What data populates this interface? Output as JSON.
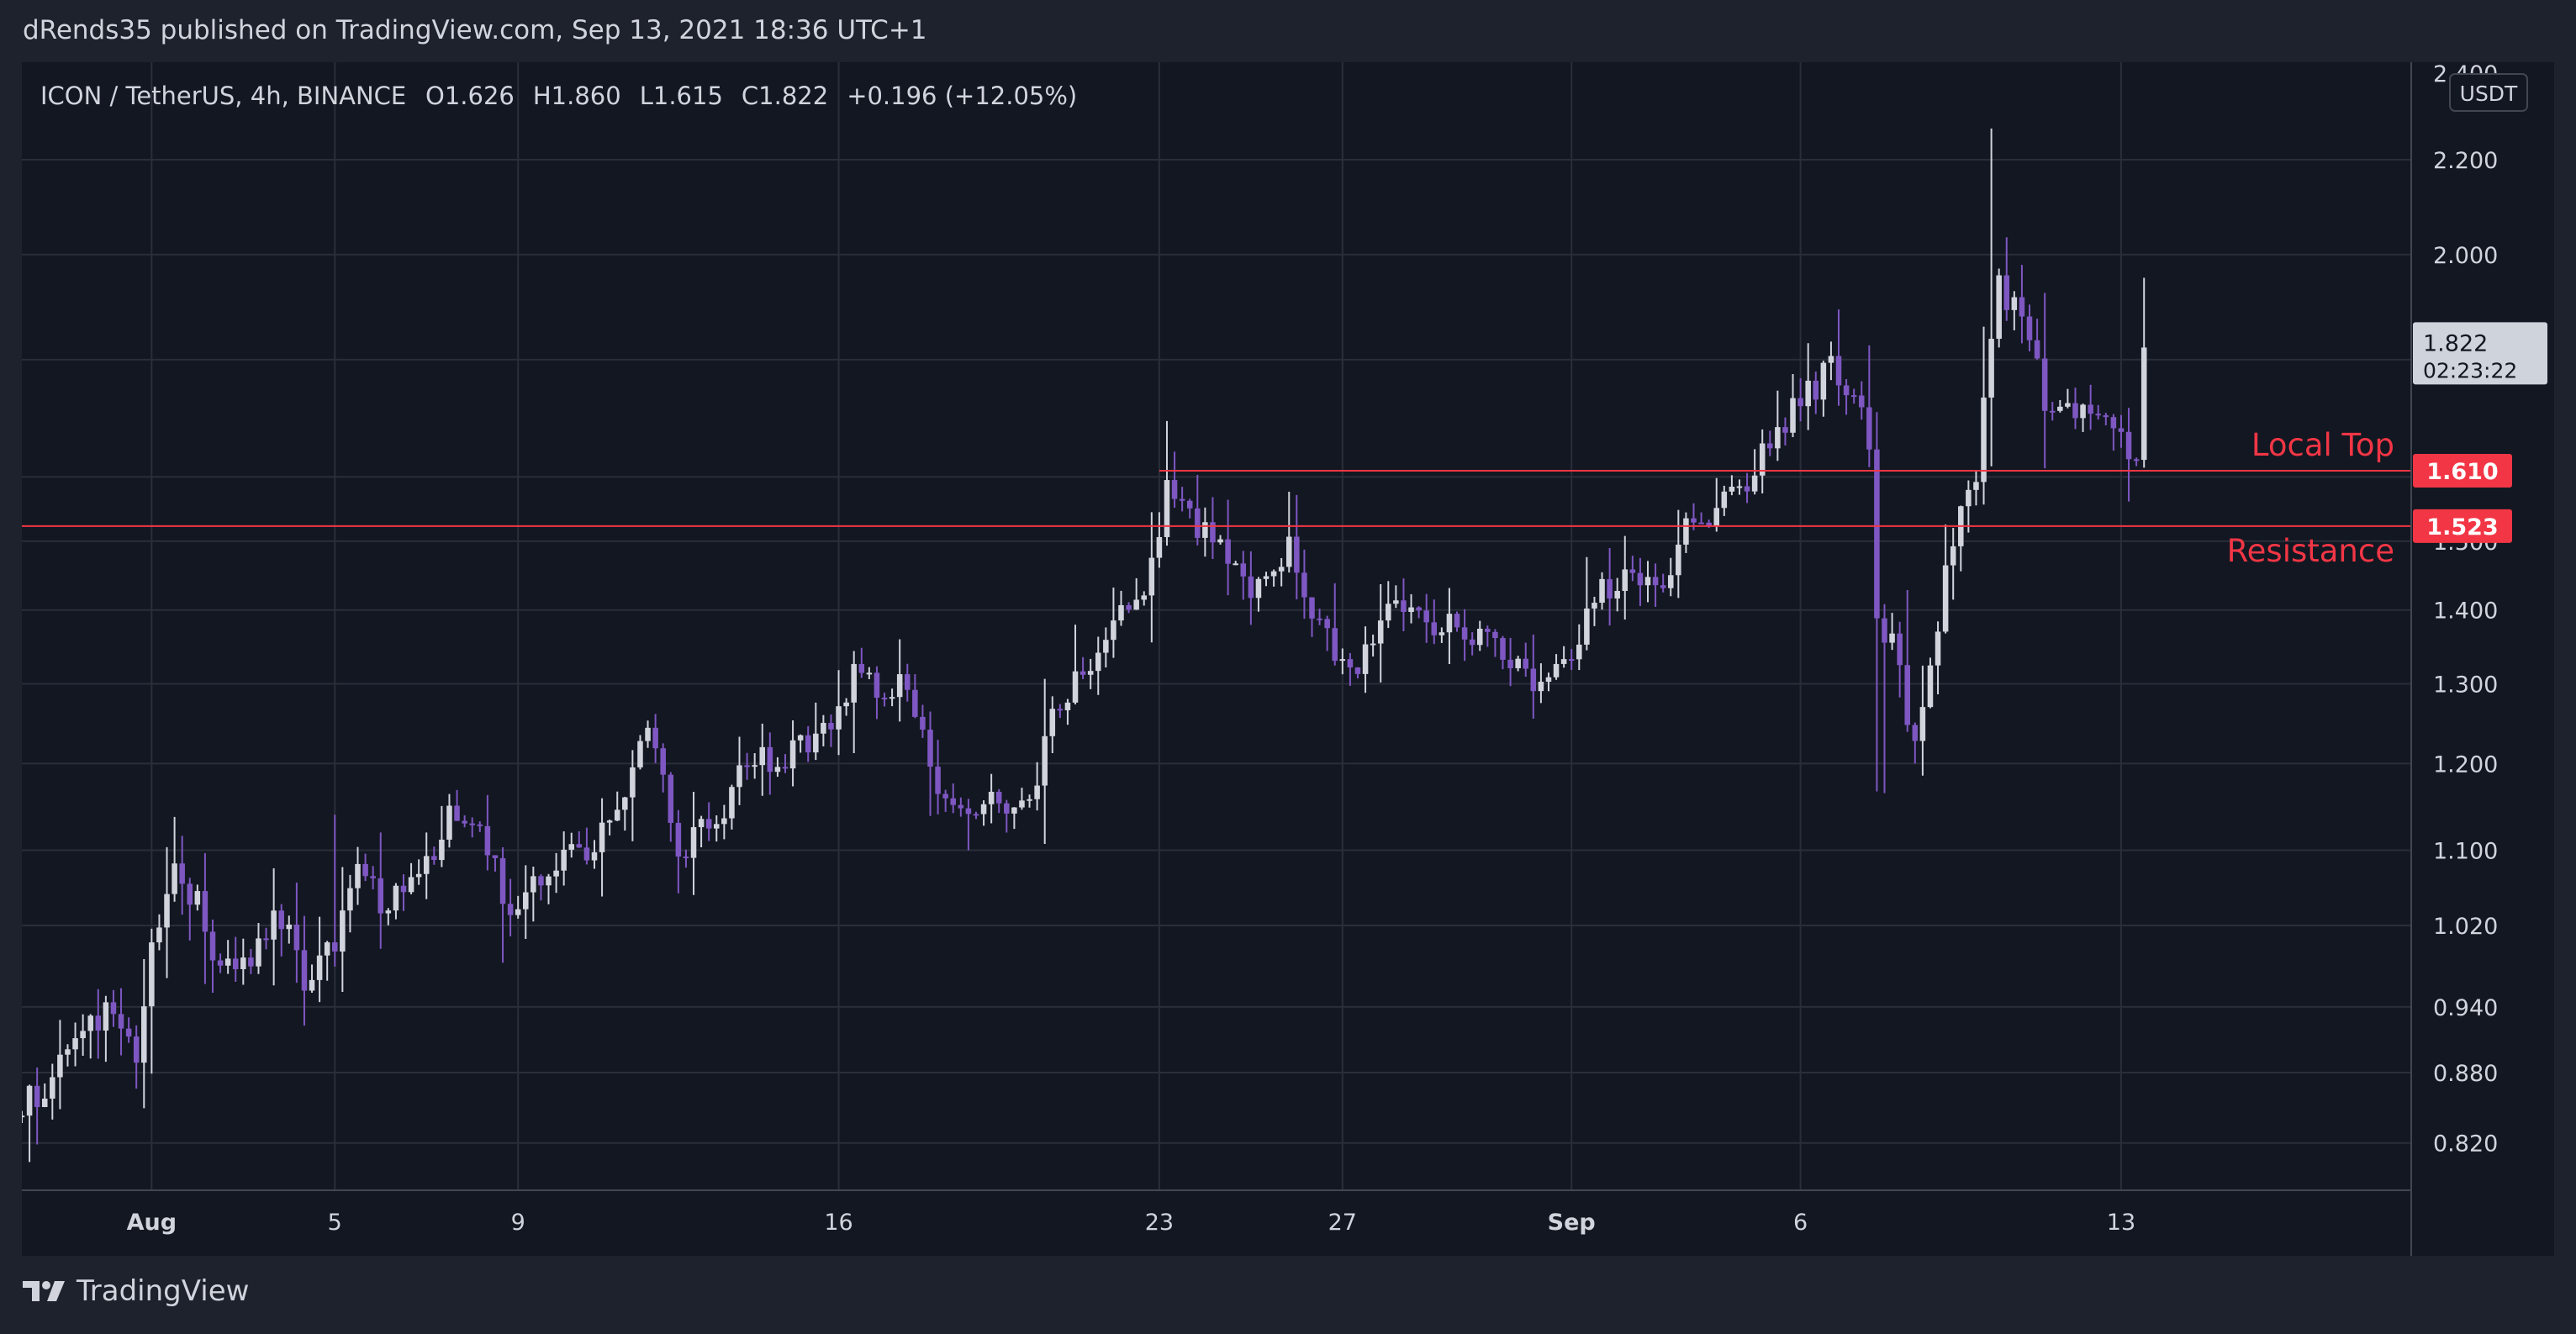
{
  "publisher_line": "dRends35 published on TradingView.com, Sep 13, 2021 18:36 UTC+1",
  "brand": {
    "name": "TradingView",
    "icon": "tradingview-logo-icon"
  },
  "colors": {
    "background": "#131722",
    "outer": "#1e222d",
    "grid": "#2a2e39",
    "axis_text": "#d1d4dc",
    "bull_candle": "#d1d4dc",
    "bear_candle": "#7e57c2",
    "level_line": "#f23645",
    "price_tag": "#cfd3dc"
  },
  "chart_data": {
    "type": "candlestick",
    "symbol_header": "ICON / TetherUS, 4h, BINANCE",
    "ohlc_header": {
      "open_label": "O",
      "open": "1.626",
      "high_label": "H",
      "high": "1.860",
      "low_label": "L",
      "low": "1.615",
      "close_label": "C",
      "close": "1.822",
      "change": "+0.196 (+12.05%)"
    },
    "currency": "USDT",
    "y_scale": "log",
    "y_range": [
      0.78,
      2.42
    ],
    "y_ticks": [
      "2.400",
      "2.200",
      "2.000",
      "1.822",
      "1.610",
      "1.523",
      "1.500",
      "1.400",
      "1.300",
      "1.200",
      "1.100",
      "1.020",
      "0.940",
      "0.880",
      "0.820"
    ],
    "y_gridlines": [
      2.2,
      2.0,
      1.8,
      1.6,
      1.5,
      1.4,
      1.3,
      1.2,
      1.1,
      1.02,
      0.94,
      0.88,
      0.82
    ],
    "y_tick_labels": [
      {
        "value": 2.4,
        "label": "2.400"
      },
      {
        "value": 2.2,
        "label": "2.200"
      },
      {
        "value": 2.0,
        "label": "2.000"
      },
      {
        "value": 1.5,
        "label": "1.500"
      },
      {
        "value": 1.4,
        "label": "1.400"
      },
      {
        "value": 1.3,
        "label": "1.300"
      },
      {
        "value": 1.2,
        "label": "1.200"
      },
      {
        "value": 1.1,
        "label": "1.100"
      },
      {
        "value": 1.02,
        "label": "1.020"
      },
      {
        "value": 0.94,
        "label": "0.940"
      },
      {
        "value": 0.88,
        "label": "0.880"
      },
      {
        "value": 0.82,
        "label": "0.820"
      }
    ],
    "x_range": [
      "2021-07-29T04:00",
      "2021-09-19T08:00"
    ],
    "x_ticks": [
      {
        "date": "2021-08-01T00:00",
        "label": "Aug"
      },
      {
        "date": "2021-08-05T00:00",
        "label": "5"
      },
      {
        "date": "2021-08-09T00:00",
        "label": "9"
      },
      {
        "date": "2021-08-16T00:00",
        "label": "16"
      },
      {
        "date": "2021-08-23T00:00",
        "label": "23"
      },
      {
        "date": "2021-08-27T00:00",
        "label": "27"
      },
      {
        "date": "2021-09-01T00:00",
        "label": "Sep"
      },
      {
        "date": "2021-09-06T00:00",
        "label": "6"
      },
      {
        "date": "2021-09-13T00:00",
        "label": "13"
      }
    ],
    "levels": [
      {
        "name": "Local Top",
        "price": 1.61,
        "price_label": "1.610"
      },
      {
        "name": "Resistance",
        "price": 1.523,
        "price_label": "1.523"
      }
    ],
    "last_price": {
      "price": 1.822,
      "label": "1.822",
      "countdown": "02:23:22"
    },
    "close_path": [
      [
        "2021-07-29T04:00",
        0.85
      ],
      [
        "2021-07-29T20:00",
        0.88
      ],
      [
        "2021-07-30T12:00",
        0.92
      ],
      [
        "2021-07-31T04:00",
        0.935
      ],
      [
        "2021-07-31T16:00",
        0.89
      ],
      [
        "2021-08-01T00:00",
        0.99
      ],
      [
        "2021-08-01T12:00",
        1.07
      ],
      [
        "2021-08-02T00:00",
        1.04
      ],
      [
        "2021-08-02T12:00",
        0.97
      ],
      [
        "2021-08-03T04:00",
        0.985
      ],
      [
        "2021-08-03T16:00",
        1.04
      ],
      [
        "2021-08-04T08:00",
        0.97
      ],
      [
        "2021-08-05T00:00",
        1.0
      ],
      [
        "2021-08-05T12:00",
        1.07
      ],
      [
        "2021-08-06T04:00",
        1.04
      ],
      [
        "2021-08-06T20:00",
        1.07
      ],
      [
        "2021-08-07T16:00",
        1.15
      ],
      [
        "2021-08-08T08:00",
        1.1
      ],
      [
        "2021-08-09T00:00",
        1.02
      ],
      [
        "2021-08-09T16:00",
        1.09
      ],
      [
        "2021-08-10T12:00",
        1.1
      ],
      [
        "2021-08-11T04:00",
        1.15
      ],
      [
        "2021-08-11T20:00",
        1.24
      ],
      [
        "2021-08-12T12:00",
        1.1
      ],
      [
        "2021-08-13T08:00",
        1.14
      ],
      [
        "2021-08-14T00:00",
        1.2
      ],
      [
        "2021-08-14T16:00",
        1.2
      ],
      [
        "2021-08-15T08:00",
        1.22
      ],
      [
        "2021-08-16T00:00",
        1.25
      ],
      [
        "2021-08-16T08:00",
        1.34
      ],
      [
        "2021-08-17T00:00",
        1.29
      ],
      [
        "2021-08-17T12:00",
        1.3
      ],
      [
        "2021-08-18T04:00",
        1.18
      ],
      [
        "2021-08-18T20:00",
        1.13
      ],
      [
        "2021-08-19T12:00",
        1.16
      ],
      [
        "2021-08-20T04:00",
        1.15
      ],
      [
        "2021-08-20T20:00",
        1.28
      ],
      [
        "2021-08-21T12:00",
        1.33
      ],
      [
        "2021-08-22T00:00",
        1.4
      ],
      [
        "2021-08-22T16:00",
        1.42
      ],
      [
        "2021-08-23T04:00",
        1.58
      ],
      [
        "2021-08-23T20:00",
        1.53
      ],
      [
        "2021-08-24T12:00",
        1.46
      ],
      [
        "2021-08-25T04:00",
        1.42
      ],
      [
        "2021-08-25T20:00",
        1.49
      ],
      [
        "2021-08-26T12:00",
        1.37
      ],
      [
        "2021-08-27T04:00",
        1.3
      ],
      [
        "2021-08-27T20:00",
        1.39
      ],
      [
        "2021-08-28T12:00",
        1.4
      ],
      [
        "2021-08-29T04:00",
        1.38
      ],
      [
        "2021-08-29T20:00",
        1.36
      ],
      [
        "2021-08-30T12:00",
        1.34
      ],
      [
        "2021-08-31T04:00",
        1.31
      ],
      [
        "2021-08-31T20:00",
        1.33
      ],
      [
        "2021-09-01T12:00",
        1.42
      ],
      [
        "2021-09-02T04:00",
        1.44
      ],
      [
        "2021-09-02T20:00",
        1.43
      ],
      [
        "2021-09-03T12:00",
        1.51
      ],
      [
        "2021-09-04T04:00",
        1.55
      ],
      [
        "2021-09-04T20:00",
        1.6
      ],
      [
        "2021-09-05T12:00",
        1.67
      ],
      [
        "2021-09-06T04:00",
        1.74
      ],
      [
        "2021-09-06T16:00",
        1.78
      ],
      [
        "2021-09-07T04:00",
        1.74
      ],
      [
        "2021-09-07T12:00",
        1.64
      ],
      [
        "2021-09-07T16:00",
        1.4
      ],
      [
        "2021-09-08T00:00",
        1.35
      ],
      [
        "2021-09-08T12:00",
        1.23
      ],
      [
        "2021-09-08T20:00",
        1.33
      ],
      [
        "2021-09-09T04:00",
        1.45
      ],
      [
        "2021-09-09T12:00",
        1.55
      ],
      [
        "2021-09-09T20:00",
        1.62
      ],
      [
        "2021-09-10T08:00",
        1.95
      ],
      [
        "2021-09-10T20:00",
        1.86
      ],
      [
        "2021-09-11T08:00",
        1.74
      ],
      [
        "2021-09-11T20:00",
        1.72
      ],
      [
        "2021-09-12T08:00",
        1.69
      ],
      [
        "2021-09-12T20:00",
        1.7
      ],
      [
        "2021-09-13T04:00",
        1.65
      ],
      [
        "2021-09-13T08:00",
        1.626
      ],
      [
        "2021-09-13T12:00",
        1.822
      ]
    ]
  }
}
